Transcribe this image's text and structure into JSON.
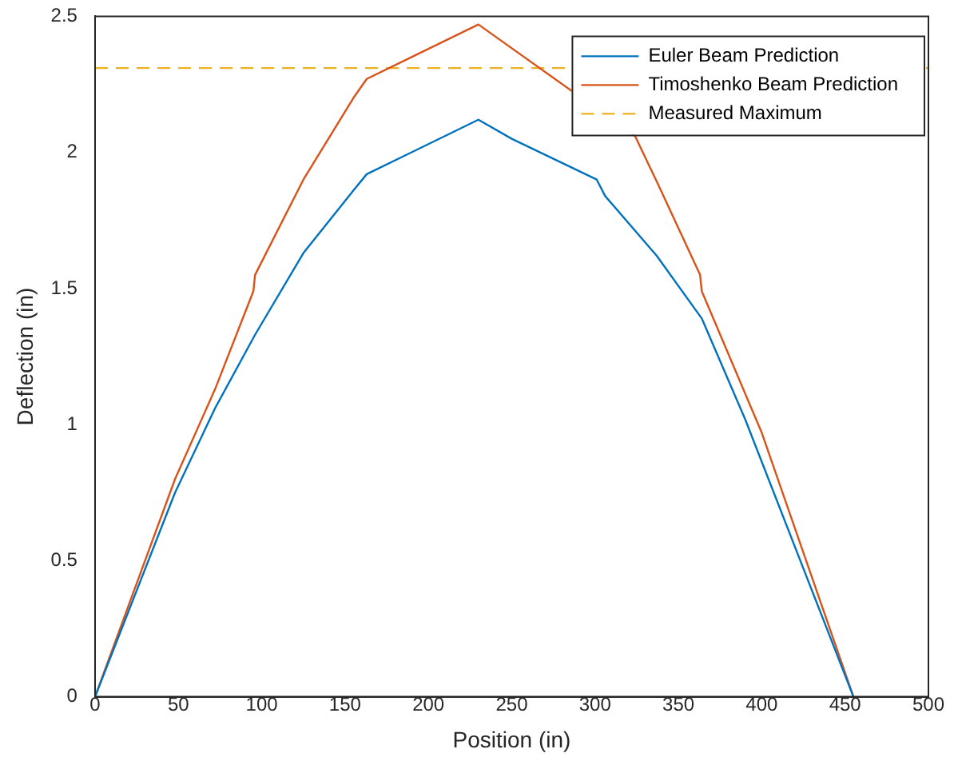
{
  "chart_data": {
    "type": "line",
    "xlabel": "Position (in)",
    "ylabel": "Deflection (in)",
    "xlim": [
      0,
      500
    ],
    "xticks": [
      0,
      50,
      100,
      150,
      200,
      250,
      300,
      350,
      400,
      450,
      500
    ],
    "ylim": [
      0,
      2.5
    ],
    "yticks": [
      0,
      0.5,
      1,
      1.5,
      2,
      2.5
    ],
    "grid": false,
    "legend": "top right",
    "marker": "none",
    "series": [
      {
        "name": "Euler Beam Prediction",
        "color": "#0072bd",
        "x": [
          0,
          48,
          72,
          96,
          125,
          155,
          163,
          230,
          250,
          301,
          306,
          337,
          364,
          390,
          455
        ],
        "values": [
          0,
          0.75,
          1.06,
          1.33,
          1.63,
          1.86,
          1.92,
          2.12,
          2.05,
          1.9,
          1.84,
          1.62,
          1.39,
          1.02,
          0
        ]
      },
      {
        "name": "Timoshenko Beam Prediction",
        "color": "#d95319",
        "x": [
          0,
          48,
          72,
          95,
          96,
          125,
          155,
          163,
          230,
          324,
          338,
          363,
          364,
          400,
          455
        ],
        "values": [
          0,
          0.8,
          1.13,
          1.49,
          1.55,
          1.9,
          2.2,
          2.27,
          2.47,
          2.06,
          1.88,
          1.55,
          1.49,
          0.97,
          0
        ]
      },
      {
        "name": "Measured Maximum",
        "color": "#edb120",
        "line_style": "dashed",
        "x": [
          0,
          500
        ],
        "values": [
          2.31,
          2.31
        ]
      }
    ]
  }
}
